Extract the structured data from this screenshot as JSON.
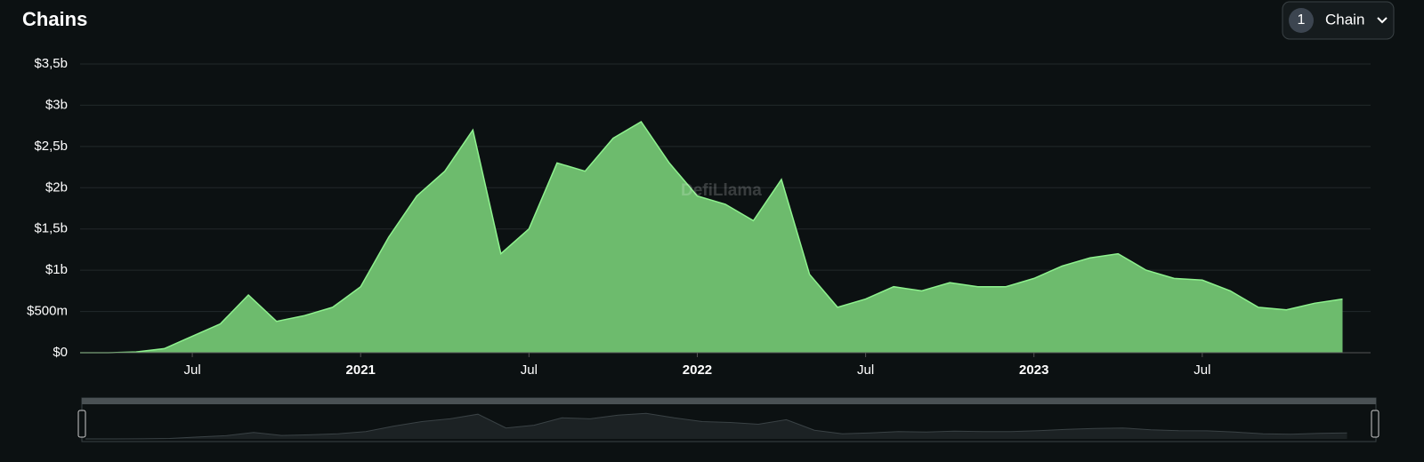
{
  "chart_data": {
    "type": "area",
    "title": "Chains",
    "watermark": "DefiLlama",
    "selector": {
      "count": 1,
      "label": "Chain"
    },
    "x": [
      "2020-03",
      "2020-04",
      "2020-05",
      "2020-06",
      "2020-07",
      "2020-08",
      "2020-09",
      "2020-10",
      "2020-11",
      "2020-12",
      "2021-01",
      "2021-02",
      "2021-03",
      "2021-04",
      "2021-05",
      "2021-06",
      "2021-07",
      "2021-08",
      "2021-09",
      "2021-10",
      "2021-11",
      "2021-12",
      "2022-01",
      "2022-02",
      "2022-03",
      "2022-04",
      "2022-05",
      "2022-06",
      "2022-07",
      "2022-08",
      "2022-09",
      "2022-10",
      "2022-11",
      "2022-12",
      "2023-01",
      "2023-02",
      "2023-03",
      "2023-04",
      "2023-05",
      "2023-06",
      "2023-07",
      "2023-08",
      "2023-09",
      "2023-10",
      "2023-11",
      "2023-12"
    ],
    "values": [
      0,
      0,
      10000000,
      50000000,
      200000000,
      350000000,
      700000000,
      380000000,
      450000000,
      550000000,
      800000000,
      1400000000,
      1900000000,
      2200000000,
      2700000000,
      1200000000,
      1500000000,
      2300000000,
      2200000000,
      2600000000,
      2800000000,
      2300000000,
      1900000000,
      1800000000,
      1600000000,
      2100000000,
      950000000,
      550000000,
      650000000,
      800000000,
      750000000,
      850000000,
      800000000,
      800000000,
      900000000,
      1050000000,
      1150000000,
      1200000000,
      1000000000,
      900000000,
      880000000,
      750000000,
      550000000,
      520000000,
      600000000,
      650000000
    ],
    "color": "#6dbb6d",
    "line_color": "#8ef28e",
    "xlim": [
      "2020-03",
      "2024-01"
    ],
    "xticks": [
      {
        "value": "2020-07",
        "label": "Jul"
      },
      {
        "value": "2021-01",
        "label": "2021"
      },
      {
        "value": "2021-07",
        "label": "Jul"
      },
      {
        "value": "2022-01",
        "label": "2022"
      },
      {
        "value": "2022-07",
        "label": "Jul"
      },
      {
        "value": "2023-01",
        "label": "2023"
      },
      {
        "value": "2023-07",
        "label": "Jul"
      }
    ],
    "ylim": [
      0,
      3500000000
    ],
    "yticks": [
      {
        "value": 0,
        "label": "$0"
      },
      {
        "value": 500000000,
        "label": "$500m"
      },
      {
        "value": 1000000000,
        "label": "$1b"
      },
      {
        "value": 1500000000,
        "label": "$1,5b"
      },
      {
        "value": 2000000000,
        "label": "$2b"
      },
      {
        "value": 2500000000,
        "label": "$2,5b"
      },
      {
        "value": 3000000000,
        "label": "$3b"
      },
      {
        "value": 3500000000,
        "label": "$3,5b"
      }
    ],
    "grid": true
  }
}
